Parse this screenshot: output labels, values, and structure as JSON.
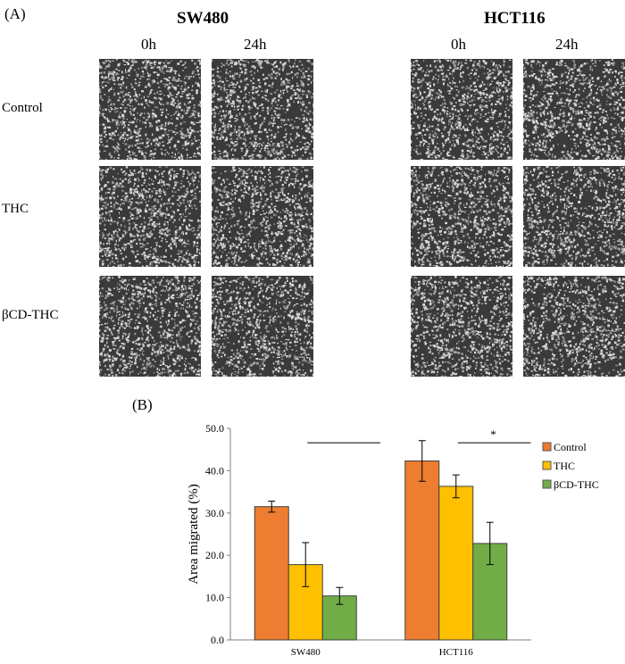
{
  "panel_a_label": "(A)",
  "panel_b_label": "(B)",
  "cell_lines": [
    "SW480",
    "HCT116"
  ],
  "time_points": [
    "0h",
    "24h"
  ],
  "row_labels": [
    "Control",
    "THC",
    "βCD-THC"
  ],
  "images": {
    "gap_fraction": [
      [
        [
          0.46,
          0.4,
          0.5,
          0.42
        ],
        [
          0.48,
          0.36,
          0.5,
          0.4
        ],
        [
          0.5,
          0.44,
          0.46,
          0.34
        ]
      ],
      [
        [
          0.5,
          0.3,
          0.5,
          0.42
        ],
        [
          0.52,
          0.4,
          0.5,
          0.32
        ],
        [
          0.48,
          0.4,
          0.48,
          0.3
        ]
      ],
      [
        [
          0.5,
          0.42,
          0.5,
          0.4
        ],
        [
          0.46,
          0.38,
          0.44,
          0.34
        ],
        [
          0.5,
          0.4,
          0.46,
          0.34
        ]
      ]
    ]
  },
  "colors": {
    "control": "#ED7D31",
    "thc": "#FFC000",
    "bcd_thc": "#70AD47",
    "texture_dark": "#3a3a3a",
    "texture_light": "#d8d8d8",
    "gap": "#6d6d72"
  },
  "chart_data": {
    "type": "bar",
    "categories": [
      "SW480",
      "HCT116"
    ],
    "ylabel": "Area migrated (%)",
    "ylim": [
      0,
      50
    ],
    "yticks": [
      "0.0",
      "10.0",
      "20.0",
      "30.0",
      "40.0",
      "50.0"
    ],
    "series": [
      {
        "name": "Control",
        "values": [
          31.5,
          42.3
        ],
        "errors": [
          1.3,
          4.8
        ]
      },
      {
        "name": "THC",
        "values": [
          17.8,
          36.3
        ],
        "errors": [
          5.2,
          2.7
        ]
      },
      {
        "name": "βCD-THC",
        "values": [
          10.4,
          22.8
        ],
        "errors": [
          2.0,
          5.0
        ]
      }
    ],
    "annotations": [
      "*"
    ],
    "legend_position": "right"
  }
}
